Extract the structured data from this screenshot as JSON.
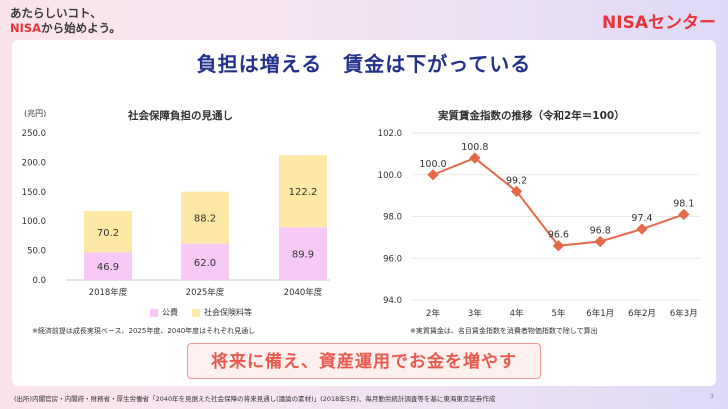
{
  "tagline": {
    "line1": "あたらしいコト、",
    "line2_brand": "NISA",
    "line2_rest": "から始めよう。"
  },
  "logo": {
    "brand": "NISA",
    "suffix": "センター"
  },
  "headline": "負担は増える　賃金は下がっている",
  "left_chart": {
    "unit": "(兆円)",
    "title": "社会保障負担の見通し",
    "note": "※経済前提は成長実現ベース、2025年度、2040年度はそれぞれ見通し",
    "legend": [
      "公費",
      "社会保険料等"
    ]
  },
  "right_chart": {
    "title": "実質賃金指数の推移（令和2年＝100）",
    "note": "※実質賃金は、名目賃金指数を消費者物価指数で除して算出"
  },
  "cta": "将来に備え、資産運用でお金を増やす",
  "footer": "(出所)内閣官房・内閣府・財務省・厚生労働省「2040年を見据えた社会保障の将来見通し(議論の素材)」(2018年5月)、毎月勤労統計調査等を基に東海東京証券作成",
  "page_number": "3",
  "colors": {
    "public": "#f8c9f4",
    "insurance": "#fde8a6",
    "line": "#e8684a",
    "headline": "#23308c",
    "brand": "#e8343a"
  },
  "chart_data": [
    {
      "type": "bar",
      "stacked": true,
      "title": "社会保障負担の見通し",
      "ylabel": "(兆円)",
      "categories": [
        "2018年度",
        "2025年度",
        "2040年度"
      ],
      "series": [
        {
          "name": "公費",
          "values": [
            46.9,
            62.0,
            89.9
          ]
        },
        {
          "name": "社会保険料等",
          "values": [
            70.2,
            88.2,
            122.2
          ]
        }
      ],
      "ylim": [
        0,
        250
      ],
      "yticks": [
        "0.0",
        "50.0",
        "100.0",
        "150.0",
        "200.0",
        "250.0"
      ],
      "labels_public": [
        "46.9",
        "62.0",
        "89.9"
      ],
      "labels_insurance": [
        "70.2",
        "88.2",
        "122.2"
      ],
      "legend": "bottom"
    },
    {
      "type": "line",
      "title": "実質賃金指数の推移（令和2年＝100）",
      "categories": [
        "2年",
        "3年",
        "4年",
        "5年",
        "6年1月",
        "6年2月",
        "6年3月"
      ],
      "values": [
        100.0,
        100.8,
        99.2,
        96.6,
        96.8,
        97.4,
        98.1
      ],
      "labels": [
        "100.0",
        "100.8",
        "99.2",
        "96.6",
        "96.8",
        "97.4",
        "98.1"
      ],
      "ylim": [
        94,
        102
      ],
      "yticks": [
        "94.0",
        "96.0",
        "98.0",
        "100.0",
        "102.0"
      ]
    }
  ]
}
